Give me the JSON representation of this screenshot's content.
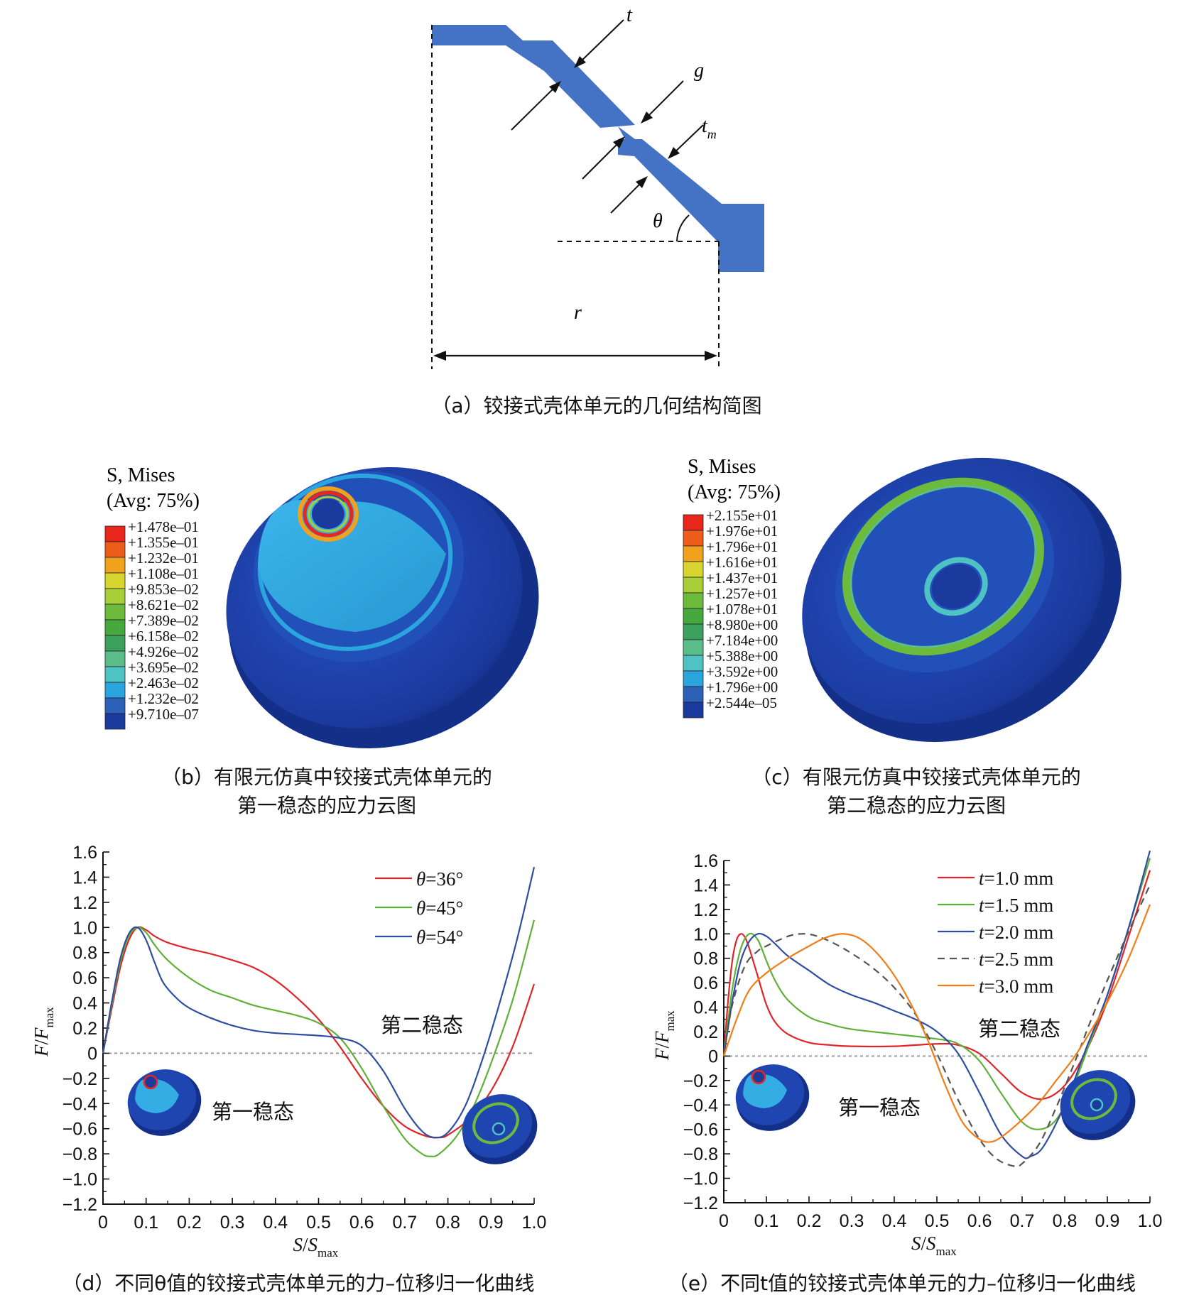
{
  "panel_a": {
    "caption": "（a）铰接式壳体单元的几何结构简图",
    "labels": {
      "t": "t",
      "g": "g",
      "tm_main": "t",
      "tm_sub": "m",
      "theta": "θ",
      "r": "r"
    },
    "shape_color": "#4472c4"
  },
  "panel_b": {
    "legend_title": "S, Mises",
    "legend_avg": "(Avg: 75%)",
    "legend_values": [
      "+1.478e–01",
      "+1.355e–01",
      "+1.232e–01",
      "+1.108e–01",
      "+9.853e–02",
      "+8.621e–02",
      "+7.389e–02",
      "+6.158e–02",
      "+4.926e–02",
      "+3.695e–02",
      "+2.463e–02",
      "+1.232e–02",
      "+9.710e–07"
    ],
    "caption_line1": "（b）有限元仿真中铰接式壳体单元的",
    "caption_line2": "第一稳态的应力云图"
  },
  "panel_c": {
    "legend_title": "S, Mises",
    "legend_avg": "(Avg: 75%)",
    "legend_values": [
      "+2.155e+01",
      "+1.976e+01",
      "+1.796e+01",
      "+1.616e+01",
      "+1.437e+01",
      "+1.257e+01",
      "+1.078e+01",
      "+8.980e+00",
      "+7.184e+00",
      "+5.388e+00",
      "+3.592e+00",
      "+1.796e+00",
      "+2.544e–05"
    ],
    "caption_line1": "（c）有限元仿真中铰接式壳体单元的",
    "caption_line2": "第二稳态的应力云图"
  },
  "contour_colors": [
    "#e8261c",
    "#ec5d1c",
    "#f0a21e",
    "#d8d530",
    "#a8cf38",
    "#6cbb3c",
    "#46a93e",
    "#3ca15c",
    "#5cbd8a",
    "#4fc2c4",
    "#2ba5de",
    "#2d60b8",
    "#1b3a9e"
  ],
  "chart_data": [
    {
      "type": "line",
      "caption": "（d）不同θ值的铰接式壳体单元的力–位移归一化曲线",
      "xlabel_main": "S",
      "xlabel_slash": "/",
      "xlabel_den": "S",
      "xlabel_sub": "max",
      "ylabel_main": "F",
      "ylabel_slash": "/",
      "ylabel_den": "F",
      "ylabel_sub": "max",
      "xlim": [
        0,
        1.0
      ],
      "ylim": [
        -1.2,
        1.6
      ],
      "xticks": [
        "0",
        "0.1",
        "0.2",
        "0.3",
        "0.4",
        "0.5",
        "0.6",
        "0.7",
        "0.8",
        "0.9",
        "1.0"
      ],
      "yticks": [
        "1.6",
        "1.4",
        "1.2",
        "1.0",
        "0.8",
        "0.6",
        "0.4",
        "0.2",
        "0",
        "−0.2",
        "−0.4",
        "−0.6",
        "−0.8",
        "−1.0",
        "−1.2"
      ],
      "annotation_second": "第二稳态",
      "annotation_first": "第一稳态",
      "legend_position": "top-right",
      "series": [
        {
          "name": "θ=36°",
          "color": "#e0252a",
          "dash": "",
          "x": [
            0,
            0.02,
            0.04,
            0.06,
            0.08,
            0.1,
            0.12,
            0.15,
            0.2,
            0.25,
            0.3,
            0.35,
            0.4,
            0.45,
            0.5,
            0.55,
            0.6,
            0.65,
            0.7,
            0.75,
            0.78,
            0.8,
            0.85,
            0.9,
            0.95,
            1.0
          ],
          "y": [
            0,
            0.35,
            0.68,
            0.9,
            1.0,
            0.98,
            0.93,
            0.88,
            0.83,
            0.79,
            0.74,
            0.68,
            0.58,
            0.44,
            0.27,
            0.05,
            -0.2,
            -0.42,
            -0.58,
            -0.66,
            -0.67,
            -0.65,
            -0.52,
            -0.3,
            0.05,
            0.55
          ]
        },
        {
          "name": "θ=45°",
          "color": "#5fb038",
          "dash": "",
          "x": [
            0,
            0.02,
            0.04,
            0.06,
            0.08,
            0.1,
            0.12,
            0.15,
            0.2,
            0.25,
            0.3,
            0.35,
            0.4,
            0.45,
            0.5,
            0.55,
            0.6,
            0.65,
            0.7,
            0.74,
            0.76,
            0.78,
            0.82,
            0.86,
            0.9,
            0.95,
            1.0
          ],
          "y": [
            0,
            0.38,
            0.72,
            0.93,
            1.0,
            0.96,
            0.86,
            0.74,
            0.6,
            0.5,
            0.44,
            0.38,
            0.34,
            0.3,
            0.24,
            0.12,
            -0.12,
            -0.42,
            -0.68,
            -0.8,
            -0.82,
            -0.8,
            -0.66,
            -0.42,
            -0.08,
            0.42,
            1.06
          ]
        },
        {
          "name": "θ=54°",
          "color": "#2f4ea0",
          "dash": "",
          "x": [
            0,
            0.02,
            0.04,
            0.06,
            0.08,
            0.1,
            0.12,
            0.14,
            0.17,
            0.2,
            0.25,
            0.3,
            0.35,
            0.4,
            0.45,
            0.5,
            0.55,
            0.6,
            0.65,
            0.7,
            0.74,
            0.77,
            0.8,
            0.84,
            0.88,
            0.92,
            0.96,
            1.0
          ],
          "y": [
            0,
            0.4,
            0.75,
            0.95,
            1.0,
            0.9,
            0.72,
            0.56,
            0.44,
            0.36,
            0.28,
            0.22,
            0.18,
            0.16,
            0.15,
            0.14,
            0.12,
            0.06,
            -0.14,
            -0.44,
            -0.62,
            -0.67,
            -0.63,
            -0.42,
            -0.05,
            0.4,
            0.9,
            1.48
          ]
        }
      ]
    },
    {
      "type": "line",
      "caption": "（e）不同t值的铰接式壳体单元的力–位移归一化曲线",
      "xlabel_main": "S",
      "xlabel_slash": "/",
      "xlabel_den": "S",
      "xlabel_sub": "max",
      "ylabel_main": "F",
      "ylabel_slash": "/",
      "ylabel_den": "F",
      "ylabel_sub": "max",
      "xlim": [
        0,
        1.0
      ],
      "ylim": [
        -1.2,
        1.6
      ],
      "xticks": [
        "0",
        "0.1",
        "0.2",
        "0.3",
        "0.4",
        "0.5",
        "0.6",
        "0.7",
        "0.8",
        "0.9",
        "1.0"
      ],
      "yticks": [
        "1.6",
        "1.4",
        "1.2",
        "1.0",
        "0.8",
        "0.6",
        "0.4",
        "0.2",
        "0",
        "−0.2",
        "−0.4",
        "−0.6",
        "−0.8",
        "−1.0",
        "−1.2"
      ],
      "annotation_second": "第二稳态",
      "annotation_first": "第一稳态",
      "legend_position": "top-right",
      "series": [
        {
          "name": "t=1.0 mm",
          "color": "#e0252a",
          "dash": "",
          "x": [
            0,
            0.01,
            0.02,
            0.03,
            0.04,
            0.05,
            0.06,
            0.08,
            0.1,
            0.12,
            0.15,
            0.2,
            0.25,
            0.3,
            0.4,
            0.5,
            0.55,
            0.6,
            0.65,
            0.7,
            0.75,
            0.8,
            0.85,
            0.9,
            0.95,
            1.0
          ],
          "y": [
            0,
            0.45,
            0.78,
            0.95,
            1.0,
            0.97,
            0.88,
            0.65,
            0.42,
            0.28,
            0.18,
            0.11,
            0.09,
            0.08,
            0.08,
            0.1,
            0.09,
            0.02,
            -0.14,
            -0.3,
            -0.35,
            -0.24,
            0.04,
            0.45,
            0.98,
            1.52
          ]
        },
        {
          "name": "t=1.5 mm",
          "color": "#5fb038",
          "dash": "",
          "x": [
            0,
            0.02,
            0.04,
            0.06,
            0.08,
            0.1,
            0.12,
            0.15,
            0.2,
            0.25,
            0.3,
            0.4,
            0.5,
            0.55,
            0.6,
            0.65,
            0.7,
            0.74,
            0.78,
            0.82,
            0.86,
            0.9,
            0.95,
            1.0
          ],
          "y": [
            0,
            0.55,
            0.88,
            1.0,
            0.95,
            0.78,
            0.62,
            0.46,
            0.32,
            0.26,
            0.22,
            0.18,
            0.14,
            0.1,
            -0.04,
            -0.3,
            -0.54,
            -0.6,
            -0.52,
            -0.25,
            0.12,
            0.5,
            1.05,
            1.62
          ]
        },
        {
          "name": "t=2.0 mm",
          "color": "#2f4ea0",
          "dash": "",
          "x": [
            0,
            0.02,
            0.04,
            0.06,
            0.08,
            0.1,
            0.12,
            0.15,
            0.2,
            0.25,
            0.3,
            0.35,
            0.4,
            0.45,
            0.5,
            0.55,
            0.6,
            0.65,
            0.7,
            0.72,
            0.75,
            0.8,
            0.85,
            0.9,
            0.95,
            1.0
          ],
          "y": [
            0,
            0.45,
            0.78,
            0.94,
            1.0,
            0.98,
            0.92,
            0.82,
            0.7,
            0.58,
            0.5,
            0.44,
            0.37,
            0.3,
            0.2,
            0.02,
            -0.3,
            -0.64,
            -0.82,
            -0.82,
            -0.74,
            -0.4,
            0.06,
            0.5,
            1.05,
            1.68
          ]
        },
        {
          "name": "t=2.5 mm",
          "color": "#555555",
          "dash": "10,7",
          "x": [
            0,
            0.02,
            0.05,
            0.08,
            0.1,
            0.13,
            0.16,
            0.19,
            0.22,
            0.26,
            0.3,
            0.35,
            0.4,
            0.45,
            0.5,
            0.55,
            0.6,
            0.64,
            0.68,
            0.7,
            0.74,
            0.78,
            0.82,
            0.86,
            0.9,
            0.95,
            1.0
          ],
          "y": [
            0,
            0.42,
            0.74,
            0.86,
            0.9,
            0.95,
            0.99,
            1.0,
            0.98,
            0.92,
            0.84,
            0.72,
            0.56,
            0.34,
            0.02,
            -0.36,
            -0.68,
            -0.84,
            -0.9,
            -0.88,
            -0.72,
            -0.42,
            -0.08,
            0.28,
            0.62,
            1.02,
            1.4
          ]
        },
        {
          "name": "t=3.0 mm",
          "color": "#f07d18",
          "dash": "",
          "x": [
            0,
            0.03,
            0.06,
            0.1,
            0.15,
            0.2,
            0.24,
            0.28,
            0.32,
            0.36,
            0.4,
            0.44,
            0.48,
            0.52,
            0.56,
            0.6,
            0.63,
            0.66,
            0.7,
            0.74,
            0.78,
            0.82,
            0.86,
            0.9,
            0.95,
            1.0
          ],
          "y": [
            0,
            0.3,
            0.54,
            0.68,
            0.8,
            0.9,
            0.97,
            1.0,
            0.96,
            0.84,
            0.66,
            0.42,
            0.12,
            -0.24,
            -0.54,
            -0.68,
            -0.7,
            -0.64,
            -0.52,
            -0.38,
            -0.2,
            -0.02,
            0.2,
            0.44,
            0.8,
            1.24
          ]
        }
      ]
    }
  ]
}
